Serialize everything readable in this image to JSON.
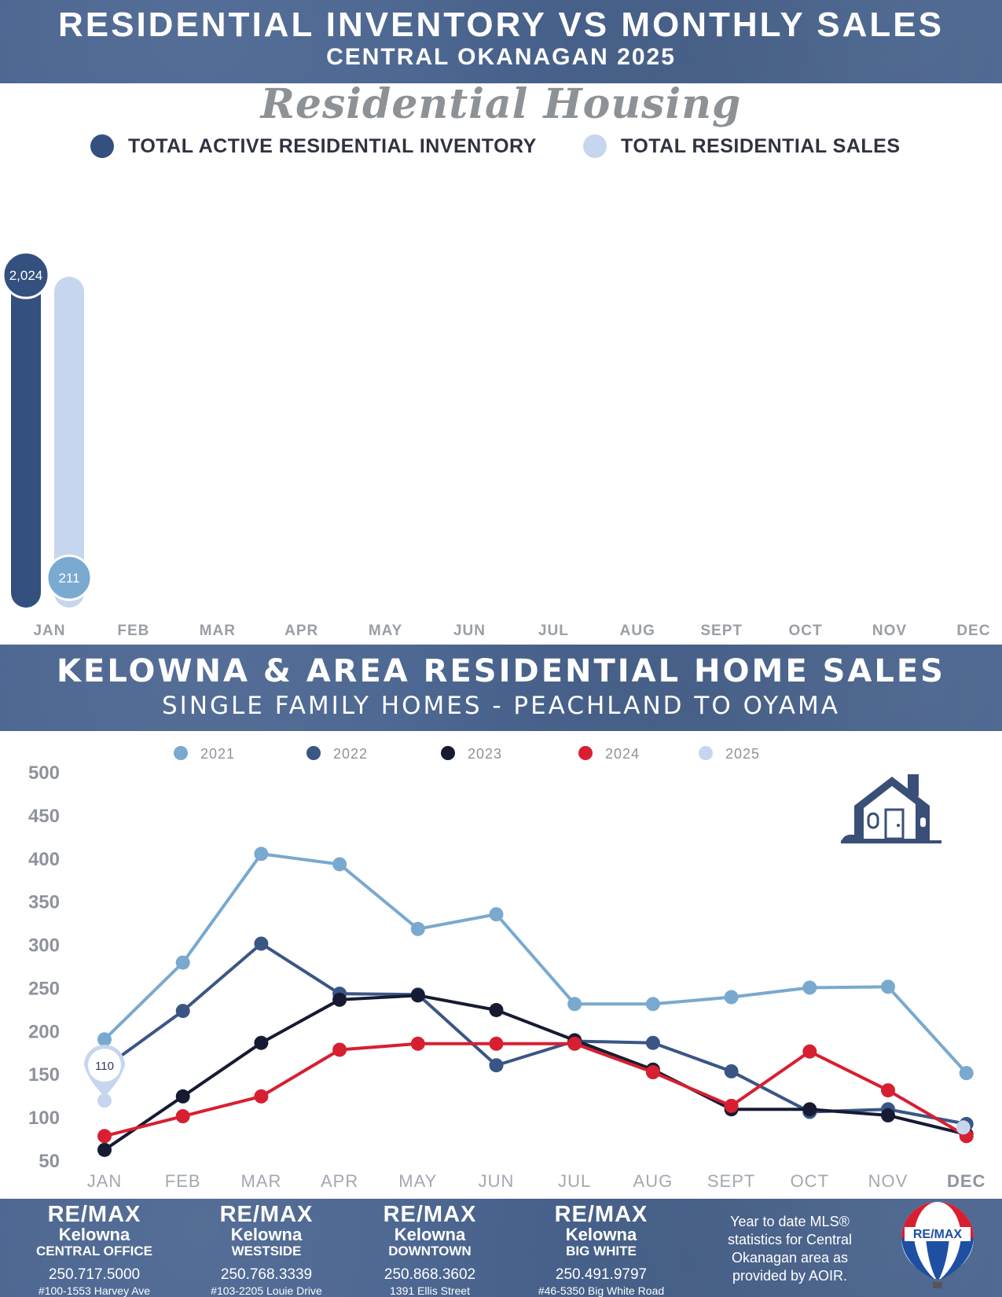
{
  "header": {
    "title": "RESIDENTIAL INVENTORY VS MONTHLY SALES",
    "subtitle": "CENTRAL OKANAGAN 2025"
  },
  "housing_heading": "Residential Housing",
  "colors": {
    "band": "#4a6590",
    "inventory": "#34507f",
    "sales": "#c6d6ee",
    "sales_badge": "#7aaad0",
    "y2021": "#79a9cf",
    "y2022": "#3a5685",
    "y2023": "#161b33",
    "y2024": "#d81f31",
    "y2025": "#c6d6ee"
  },
  "section2": {
    "title": "KELOWNA & AREA RESIDENTIAL HOME SALES",
    "subtitle": "SINGLE FAMILY HOMES - PEACHLAND TO OYAMA"
  },
  "chart_data": [
    {
      "type": "bar",
      "title": "Residential Housing",
      "categories": [
        "JAN",
        "FEB",
        "MAR",
        "APR",
        "MAY",
        "JUN",
        "JUL",
        "AUG",
        "SEPT",
        "OCT",
        "NOV",
        "DEC"
      ],
      "series": [
        {
          "name": "TOTAL ACTIVE RESIDENTIAL INVENTORY",
          "values": [
            2024,
            null,
            null,
            null,
            null,
            null,
            null,
            null,
            null,
            null,
            null,
            null
          ],
          "labels": [
            "2,024"
          ]
        },
        {
          "name": "TOTAL RESIDENTIAL SALES",
          "values": [
            211,
            null,
            null,
            null,
            null,
            null,
            null,
            null,
            null,
            null,
            null,
            null
          ],
          "labels": [
            "211"
          ]
        }
      ],
      "legend": "top"
    },
    {
      "type": "line",
      "categories": [
        "JAN",
        "FEB",
        "MAR",
        "APR",
        "MAY",
        "JUN",
        "JUL",
        "AUG",
        "SEPT",
        "OCT",
        "NOV",
        "DEC"
      ],
      "yticks": [
        "500",
        "450",
        "400",
        "350",
        "300",
        "250",
        "200",
        "150",
        "100",
        "50"
      ],
      "ylim": [
        50,
        500
      ],
      "series": [
        {
          "name": "2021",
          "values": [
            190,
            279,
            405,
            393,
            318,
            335,
            231,
            231,
            239,
            250,
            251,
            151
          ]
        },
        {
          "name": "2022",
          "values": [
            157,
            223,
            301,
            243,
            242,
            160,
            188,
            186,
            153,
            106,
            109,
            92
          ]
        },
        {
          "name": "2023",
          "values": [
            62,
            124,
            186,
            236,
            241,
            224,
            189,
            155,
            109,
            109,
            102,
            80
          ]
        },
        {
          "name": "2024",
          "values": [
            78,
            101,
            124,
            178,
            185,
            185,
            185,
            152,
            113,
            176,
            131,
            78
          ]
        },
        {
          "name": "2025",
          "values": [
            110,
            null,
            null,
            null,
            null,
            null,
            null,
            null,
            null,
            null,
            null,
            88
          ]
        }
      ],
      "callout": "110",
      "legend": "top"
    }
  ],
  "footer": {
    "offices": [
      {
        "brand": "RE/MAX",
        "city": "Kelowna",
        "branch": "CENTRAL OFFICE",
        "phone": "250.717.5000",
        "address": "#100-1553 Harvey Ave"
      },
      {
        "brand": "RE/MAX",
        "city": "Kelowna",
        "branch": "WESTSIDE",
        "phone": "250.768.3339",
        "address": "#103-2205 Louie Drive"
      },
      {
        "brand": "RE/MAX",
        "city": "Kelowna",
        "branch": "DOWNTOWN",
        "phone": "250.868.3602",
        "address": "1391 Ellis Street"
      },
      {
        "brand": "RE/MAX",
        "city": "Kelowna",
        "branch": "BIG WHITE",
        "phone": "250.491.9797",
        "address": "#46-5350 Big White Road"
      }
    ],
    "disclaimer": "Year to date MLS® statistics for Central Okanagan area as provided by AOIR.",
    "logo_text": "RE/MAX"
  }
}
